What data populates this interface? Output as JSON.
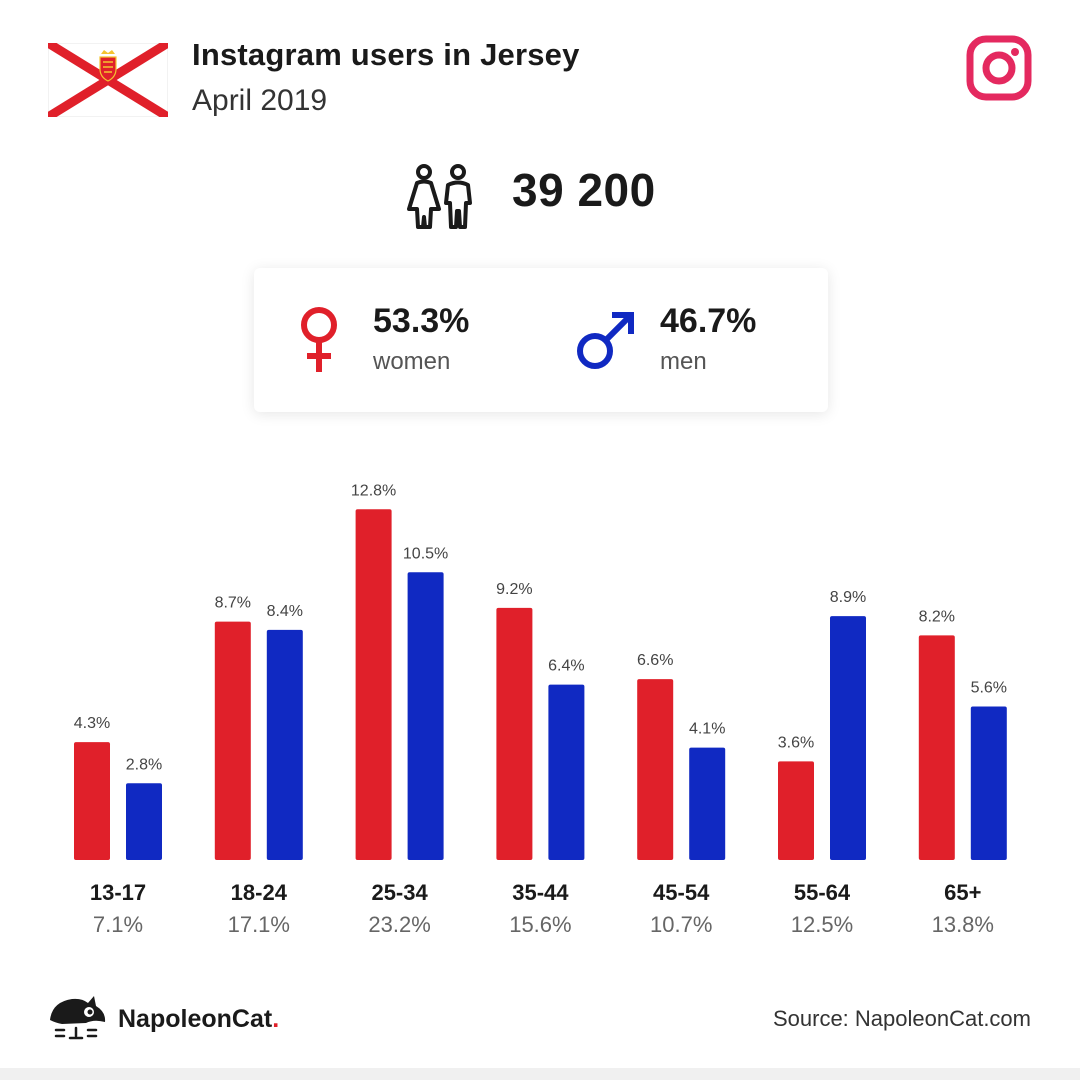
{
  "header": {
    "title": "Instagram users in Jersey",
    "subtitle": "April 2019"
  },
  "summary": {
    "total_users": "39 200",
    "women_pct": "53.3%",
    "women_label": "women",
    "men_pct": "46.7%",
    "men_label": "men"
  },
  "colors": {
    "women": "#e0202a",
    "men": "#1029c2",
    "instagram": "#e4295f"
  },
  "icons": [
    "flag-of-jersey-icon",
    "instagram-icon",
    "users-icon",
    "female-symbol-icon",
    "male-symbol-icon",
    "napoleoncat-logo-icon"
  ],
  "chart_data": {
    "type": "bar",
    "categories": [
      "13-17",
      "18-24",
      "25-34",
      "35-44",
      "45-54",
      "55-64",
      "65+"
    ],
    "category_totals": [
      "7.1%",
      "17.1%",
      "23.2%",
      "15.6%",
      "10.7%",
      "12.5%",
      "13.8%"
    ],
    "series": [
      {
        "values": [
          4.3,
          8.7,
          12.8,
          9.2,
          6.6,
          3.6,
          8.2
        ],
        "labels": [
          "4.3%",
          "8.7%",
          "12.8%",
          "9.2%",
          "6.6%",
          "3.6%",
          "8.2%"
        ]
      },
      {
        "values": [
          2.8,
          8.4,
          10.5,
          6.4,
          4.1,
          8.9,
          5.6
        ],
        "labels": [
          "2.8%",
          "8.4%",
          "10.5%",
          "6.4%",
          "4.1%",
          "8.9%",
          "5.6%"
        ]
      }
    ]
  },
  "footer": {
    "brand": "NapoleonCat",
    "brand_dot": ".",
    "source": "Source: NapoleonCat.com"
  }
}
